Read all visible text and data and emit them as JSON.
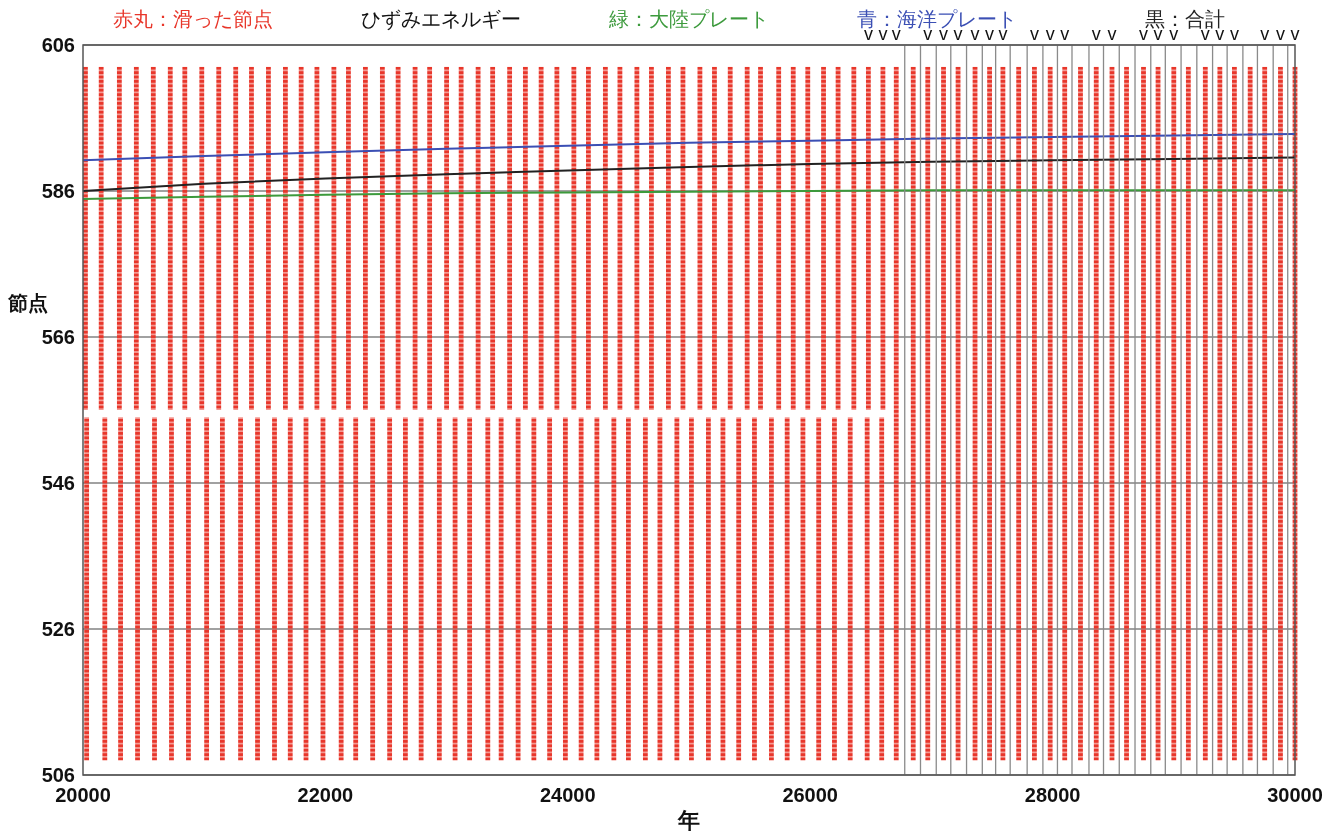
{
  "chart_data": {
    "type": "bar",
    "title": "ひずみエネルギー",
    "xlabel": "年",
    "ylabel": "節点",
    "xlim": [
      20000,
      30000
    ],
    "ylim": [
      506,
      606
    ],
    "xticks": [
      20000,
      22000,
      24000,
      26000,
      28000,
      30000
    ],
    "yticks": [
      506,
      526,
      546,
      566,
      586,
      606
    ],
    "grid": "y",
    "legend": "top",
    "series": [
      {
        "name": "赤丸：滑った節点",
        "color": "#e8362a",
        "marker": "circle",
        "x": [
          20020,
          20030,
          20150,
          20180,
          20300,
          20310,
          20440,
          20450,
          20580,
          20590,
          20720,
          20730,
          20840,
          20870,
          20980,
          21020,
          21120,
          21150,
          21260,
          21300,
          21390,
          21440,
          21530,
          21580,
          21670,
          21710,
          21800,
          21840,
          21930,
          21980,
          22070,
          22130,
          22190,
          22250,
          22330,
          22390,
          22470,
          22530,
          22600,
          22660,
          22740,
          22790,
          22860,
          22940,
          23000,
          23070,
          23120,
          23190,
          23260,
          23340,
          23380,
          23450,
          23520,
          23590,
          23650,
          23720,
          23780,
          23850,
          23910,
          23980,
          24050,
          24110,
          24170,
          24240,
          24310,
          24380,
          24430,
          24500,
          24570,
          24640,
          24690,
          24760,
          24830,
          24900,
          24950,
          25020,
          25090,
          25160,
          25210,
          25280,
          25340,
          25410,
          25480,
          25540,
          25590,
          25680,
          25740,
          25810,
          25860,
          25940,
          25980,
          26070,
          26110,
          26200,
          26230,
          26330,
          26360,
          26470,
          26480,
          26590,
          26600,
          26710,
          26850,
          26970,
          27100,
          27220,
          27360,
          27480,
          27590,
          27720,
          27850,
          27980,
          28100,
          28230,
          28360,
          28490,
          28610,
          28750,
          28870,
          29000,
          29120,
          29260,
          29380,
          29500,
          29630,
          29750,
          29880,
          30000
        ],
        "base": [
          556,
          508,
          556,
          508,
          556,
          508,
          556,
          508,
          556,
          508,
          556,
          508,
          556,
          508,
          556,
          508,
          556,
          508,
          556,
          508,
          556,
          508,
          556,
          508,
          556,
          508,
          556,
          508,
          556,
          508,
          556,
          508,
          556,
          508,
          556,
          508,
          556,
          508,
          556,
          508,
          556,
          508,
          556,
          508,
          556,
          508,
          556,
          508,
          556,
          508,
          556,
          508,
          556,
          508,
          556,
          508,
          556,
          508,
          556,
          508,
          556,
          508,
          556,
          508,
          556,
          508,
          556,
          508,
          556,
          508,
          556,
          508,
          556,
          508,
          556,
          508,
          556,
          508,
          556,
          508,
          556,
          508,
          556,
          508,
          556,
          508,
          556,
          508,
          556,
          508,
          556,
          508,
          556,
          508,
          556,
          508,
          556,
          508,
          556,
          508,
          556,
          508,
          508,
          508,
          508,
          508,
          508,
          508,
          508,
          508,
          508,
          508,
          508,
          508,
          508,
          508,
          508,
          508,
          508,
          508,
          508,
          508,
          508,
          508,
          508,
          508,
          508,
          508
        ],
        "values": [
          47,
          47,
          47,
          47,
          47,
          47,
          47,
          47,
          47,
          47,
          47,
          47,
          47,
          47,
          47,
          47,
          47,
          47,
          47,
          47,
          47,
          47,
          47,
          47,
          47,
          47,
          47,
          47,
          47,
          47,
          47,
          47,
          47,
          47,
          47,
          47,
          47,
          47,
          47,
          47,
          47,
          47,
          47,
          47,
          47,
          47,
          47,
          47,
          47,
          47,
          47,
          47,
          47,
          47,
          47,
          47,
          47,
          47,
          47,
          47,
          47,
          47,
          47,
          47,
          47,
          47,
          47,
          47,
          47,
          47,
          47,
          47,
          47,
          47,
          47,
          47,
          47,
          47,
          47,
          47,
          47,
          47,
          47,
          47,
          47,
          47,
          47,
          47,
          47,
          47,
          47,
          47,
          47,
          47,
          47,
          47,
          47,
          47,
          47,
          47,
          47,
          95,
          95,
          95,
          95,
          95,
          95,
          95,
          95,
          95,
          95,
          95,
          95,
          95,
          95,
          95,
          95,
          95,
          95,
          95,
          95,
          95,
          95,
          95,
          95,
          95,
          95,
          95
        ]
      },
      {
        "name": "緑：大陸プレート",
        "type": "line",
        "color": "#3c9a3c",
        "x": [
          20000,
          21000,
          22000,
          23000,
          24000,
          25000,
          26000,
          27000,
          28000,
          29000,
          30000
        ],
        "values": [
          584.9,
          585.2,
          585.5,
          585.7,
          585.8,
          585.9,
          586.0,
          586.1,
          586.1,
          586.1,
          586.1
        ]
      },
      {
        "name": "青：海洋プレート",
        "type": "line",
        "color": "#3b4fb4",
        "x": [
          20000,
          21000,
          22000,
          23000,
          24000,
          25000,
          26000,
          27000,
          28000,
          29000,
          30000
        ],
        "values": [
          590.2,
          590.8,
          591.3,
          591.8,
          592.2,
          592.6,
          592.9,
          593.2,
          593.4,
          593.6,
          593.8
        ]
      },
      {
        "name": "黒：合計",
        "type": "line",
        "color": "#222222",
        "x": [
          20000,
          21000,
          22000,
          23000,
          24000,
          25000,
          26000,
          27000,
          28000,
          29000,
          30000
        ],
        "values": [
          586.0,
          587.0,
          587.7,
          588.3,
          588.8,
          589.3,
          589.7,
          590.0,
          590.2,
          590.4,
          590.6
        ]
      }
    ],
    "ref_lines": [
      {
        "axis": "x",
        "value": 26780,
        "color": "#8a8a8a"
      },
      {
        "axis": "x",
        "value": 26910,
        "color": "#8a8a8a"
      },
      {
        "axis": "x",
        "value": 27040,
        "color": "#8a8a8a"
      },
      {
        "axis": "x",
        "value": 27160,
        "color": "#8a8a8a"
      },
      {
        "axis": "x",
        "value": 27290,
        "color": "#8a8a8a"
      },
      {
        "axis": "x",
        "value": 27420,
        "color": "#8a8a8a"
      },
      {
        "axis": "x",
        "value": 27530,
        "color": "#8a8a8a"
      },
      {
        "axis": "x",
        "value": 27650,
        "color": "#8a8a8a"
      },
      {
        "axis": "x",
        "value": 27790,
        "color": "#8a8a8a"
      },
      {
        "axis": "x",
        "value": 27920,
        "color": "#8a8a8a"
      },
      {
        "axis": "x",
        "value": 28040,
        "color": "#8a8a8a"
      },
      {
        "axis": "x",
        "value": 28160,
        "color": "#8a8a8a"
      },
      {
        "axis": "x",
        "value": 28300,
        "color": "#8a8a8a"
      },
      {
        "axis": "x",
        "value": 28420,
        "color": "#8a8a8a"
      },
      {
        "axis": "x",
        "value": 28550,
        "color": "#8a8a8a"
      },
      {
        "axis": "x",
        "value": 28680,
        "color": "#8a8a8a"
      },
      {
        "axis": "x",
        "value": 28810,
        "color": "#8a8a8a"
      },
      {
        "axis": "x",
        "value": 28930,
        "color": "#8a8a8a"
      },
      {
        "axis": "x",
        "value": 29060,
        "color": "#8a8a8a"
      },
      {
        "axis": "x",
        "value": 29190,
        "color": "#8a8a8a"
      },
      {
        "axis": "x",
        "value": 29320,
        "color": "#8a8a8a"
      },
      {
        "axis": "x",
        "value": 29440,
        "color": "#8a8a8a"
      },
      {
        "axis": "x",
        "value": 29570,
        "color": "#8a8a8a"
      },
      {
        "axis": "x",
        "value": 29690,
        "color": "#8a8a8a"
      },
      {
        "axis": "x",
        "value": 29820,
        "color": "#8a8a8a"
      },
      {
        "axis": "x",
        "value": 29940,
        "color": "#8a8a8a"
      }
    ],
    "annotations": [
      {
        "text": "v",
        "x": 26480,
        "y": 603
      },
      {
        "text": "v",
        "x": 26600,
        "y": 603
      },
      {
        "text": "v",
        "x": 26710,
        "y": 603
      },
      {
        "text": "v",
        "x": 26970,
        "y": 603
      },
      {
        "text": "v",
        "x": 27100,
        "y": 603
      },
      {
        "text": "v",
        "x": 27220,
        "y": 603
      },
      {
        "text": "v",
        "x": 27360,
        "y": 603
      },
      {
        "text": "v",
        "x": 27480,
        "y": 603
      },
      {
        "text": "v",
        "x": 27590,
        "y": 603
      },
      {
        "text": "v",
        "x": 27850,
        "y": 603
      },
      {
        "text": "v",
        "x": 27980,
        "y": 603
      },
      {
        "text": "v",
        "x": 28100,
        "y": 603
      },
      {
        "text": "v",
        "x": 28360,
        "y": 603
      },
      {
        "text": "v",
        "x": 28490,
        "y": 603
      },
      {
        "text": "v",
        "x": 28750,
        "y": 603
      },
      {
        "text": "v",
        "x": 28870,
        "y": 603
      },
      {
        "text": "v",
        "x": 29000,
        "y": 603
      },
      {
        "text": "v",
        "x": 29260,
        "y": 603
      },
      {
        "text": "v",
        "x": 29380,
        "y": 603
      },
      {
        "text": "v",
        "x": 29500,
        "y": 603
      },
      {
        "text": "v",
        "x": 29750,
        "y": 603
      },
      {
        "text": "v",
        "x": 29880,
        "y": 603
      },
      {
        "text": "v",
        "x": 30000,
        "y": 603
      }
    ]
  }
}
